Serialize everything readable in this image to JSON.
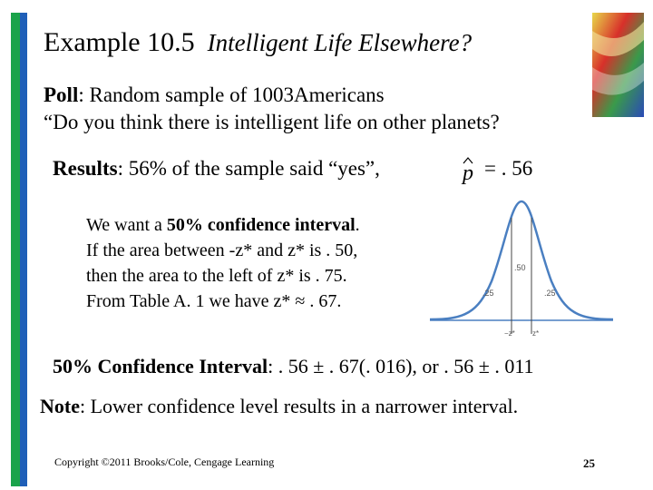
{
  "slide": {
    "title_number": "Example 10.5",
    "title_text": "Intelligent Life Elsewhere?",
    "poll_label": "Poll",
    "poll_text": ":  Random sample of 1003Americans",
    "poll_question": "“Do you think there is intelligent life on other planets?",
    "results_label": "Results",
    "results_text": ": 56% of the sample said “yes”,",
    "phat_symbol": "p",
    "phat_value": "= . 56",
    "interval_lines": [
      {
        "pre": "We want a ",
        "bold": "50% confidence interval",
        "post": "."
      },
      {
        "text": "If the area between -z* and z* is . 50,"
      },
      {
        "text": "then the area to the left of z* is . 75."
      },
      {
        "text": "From Table A. 1 we have z* ≈ . 67."
      }
    ],
    "curve": {
      "center_label": ".50",
      "left_tail_label": ".25",
      "right_tail_label": ".25",
      "neg_z_label": "−z*",
      "pos_z_label": "z*"
    },
    "ci_label": "50% Confidence Interval",
    "ci_text": ": . 56 ± . 67(. 016), or . 56 ± . 011",
    "note_label": "Note",
    "note_text": ": Lower confidence level results in a narrower interval.",
    "copyright": "Copyright ©2011 Brooks/Cole, Cengage Learning",
    "page_number": "25"
  },
  "colors": {
    "left_bar_green": "#1aa34a",
    "left_bar_blue": "#1f5fb8",
    "curve_line": "#4a7fc1"
  }
}
